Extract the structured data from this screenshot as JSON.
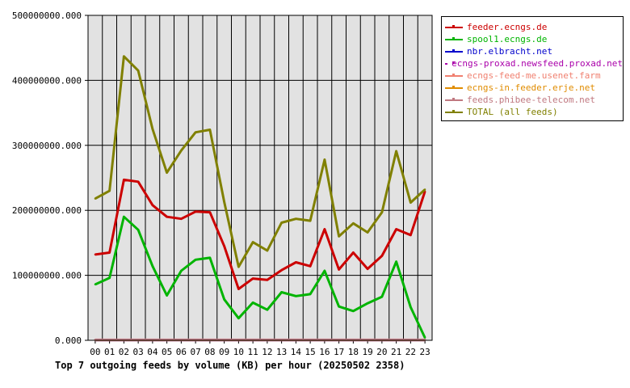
{
  "chart_data": {
    "type": "line",
    "title": "Top 7 outgoing feeds by volume (KB) per hour (20250502 2358)",
    "categories": [
      "00",
      "01",
      "02",
      "03",
      "04",
      "05",
      "06",
      "07",
      "08",
      "09",
      "10",
      "11",
      "12",
      "13",
      "14",
      "15",
      "16",
      "17",
      "18",
      "19",
      "20",
      "21",
      "22",
      "23"
    ],
    "y_ticks": [
      "0.000",
      "100000000.000",
      "200000000.000",
      "300000000.000",
      "400000000.000",
      "500000000.000"
    ],
    "ylim": [
      0,
      500000000
    ],
    "grid": true,
    "legend_position": "right",
    "series": [
      {
        "name": "feeder.ecngs.de",
        "color": "#cc0000",
        "values": [
          132000000,
          135000000,
          247000000,
          244000000,
          208000000,
          190000000,
          187000000,
          198000000,
          197000000,
          145000000,
          79000000,
          95000000,
          93000000,
          108000000,
          120000000,
          114000000,
          171000000,
          109000000,
          135000000,
          110000000,
          130000000,
          171000000,
          162000000,
          229000000
        ]
      },
      {
        "name": "spool1.ecngs.de",
        "color": "#00b400",
        "values": [
          86000000,
          96000000,
          190000000,
          170000000,
          114000000,
          69000000,
          107000000,
          124000000,
          127000000,
          63000000,
          34000000,
          58000000,
          47000000,
          74000000,
          68000000,
          71000000,
          107000000,
          52000000,
          45000000,
          57000000,
          67000000,
          121000000,
          51000000,
          4000000
        ]
      },
      {
        "name": "nbr.elbracht.net",
        "color": "#0000cc",
        "values": [
          500000,
          500000,
          500000,
          500000,
          500000,
          500000,
          500000,
          500000,
          500000,
          500000,
          500000,
          500000,
          500000,
          500000,
          500000,
          500000,
          500000,
          500000,
          500000,
          500000,
          500000,
          500000,
          500000,
          500000
        ]
      },
      {
        "name": "ecngs-proxad.newsfeed.proxad.net",
        "color": "#aa00aa",
        "values": [
          500000,
          500000,
          500000,
          500000,
          500000,
          500000,
          500000,
          500000,
          500000,
          500000,
          500000,
          500000,
          500000,
          500000,
          500000,
          500000,
          500000,
          500000,
          500000,
          500000,
          500000,
          500000,
          500000,
          500000
        ]
      },
      {
        "name": "ecngs-feed-me.usenet.farm",
        "color": "#f08070",
        "values": [
          600000,
          600000,
          600000,
          600000,
          600000,
          600000,
          600000,
          600000,
          600000,
          600000,
          600000,
          600000,
          600000,
          600000,
          600000,
          600000,
          600000,
          600000,
          600000,
          600000,
          600000,
          600000,
          600000,
          600000
        ]
      },
      {
        "name": "ecngs-in.feeder.erje.net",
        "color": "#e08c00",
        "values": [
          500000,
          500000,
          500000,
          500000,
          500000,
          500000,
          500000,
          500000,
          500000,
          500000,
          500000,
          500000,
          500000,
          500000,
          500000,
          500000,
          500000,
          500000,
          500000,
          500000,
          500000,
          500000,
          500000,
          500000
        ]
      },
      {
        "name": "feeds.phibee-telecom.net",
        "color": "#c07880",
        "values": [
          700000,
          700000,
          700000,
          700000,
          700000,
          700000,
          700000,
          700000,
          700000,
          700000,
          700000,
          700000,
          700000,
          700000,
          700000,
          700000,
          700000,
          700000,
          700000,
          700000,
          700000,
          700000,
          700000,
          700000
        ]
      },
      {
        "name": "TOTAL (all feeds)",
        "color": "#808000",
        "values": [
          218000000,
          230000000,
          437000000,
          415000000,
          325000000,
          258000000,
          292000000,
          320000000,
          324000000,
          213000000,
          113000000,
          151000000,
          138000000,
          181000000,
          187000000,
          184000000,
          278000000,
          160000000,
          180000000,
          166000000,
          197000000,
          291000000,
          212000000,
          232000000
        ]
      }
    ]
  }
}
